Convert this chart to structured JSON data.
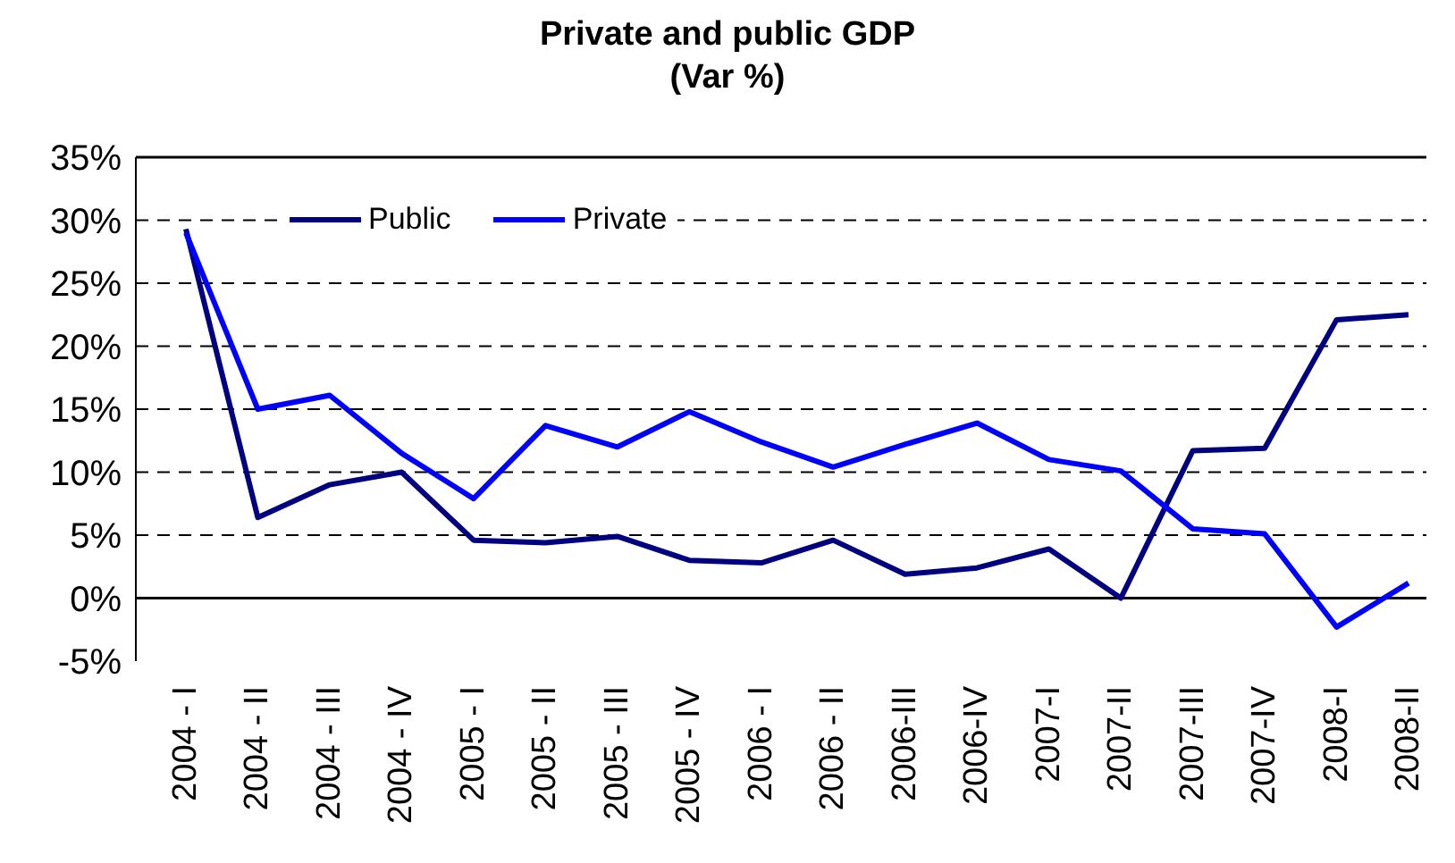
{
  "chart_data": {
    "type": "line",
    "title": "Private and public GDP\n(Var %)",
    "categories": [
      "2004 - I",
      "2004 - II",
      "2004 - III",
      "2004 - IV",
      "2005 - I",
      "2005 - II",
      "2005 - III",
      "2005 - IV",
      "2006 - I",
      "2006 - II",
      "2006-III",
      "2006-IV",
      "2007-I",
      "2007-II",
      "2007-III",
      "2007-IV",
      "2008-I",
      "2008-II"
    ],
    "series": [
      {
        "name": "Public",
        "color": "#000080",
        "values": [
          29.3,
          6.4,
          9.0,
          10.0,
          4.6,
          4.4,
          4.9,
          3.0,
          2.8,
          4.6,
          1.9,
          2.4,
          3.9,
          0.0,
          11.7,
          11.9,
          22.1,
          22.5
        ]
      },
      {
        "name": "Private",
        "color": "#0000ff",
        "values": [
          29.0,
          15.0,
          16.1,
          11.5,
          7.9,
          13.7,
          12.0,
          14.8,
          12.4,
          10.4,
          12.2,
          13.9,
          11.0,
          10.1,
          5.5,
          5.1,
          -2.3,
          1.2
        ]
      }
    ],
    "ylim": [
      -5,
      35
    ],
    "yticks": [
      {
        "value": -5,
        "label": "-5%"
      },
      {
        "value": 0,
        "label": "0%"
      },
      {
        "value": 5,
        "label": "5%"
      },
      {
        "value": 10,
        "label": "10%"
      },
      {
        "value": 15,
        "label": "15%"
      },
      {
        "value": 20,
        "label": "20%"
      },
      {
        "value": 25,
        "label": "25%"
      },
      {
        "value": 30,
        "label": "30%"
      },
      {
        "value": 35,
        "label": "35%"
      }
    ],
    "grid": "y",
    "legend": "top",
    "marker": "none",
    "line_style": "solid"
  }
}
